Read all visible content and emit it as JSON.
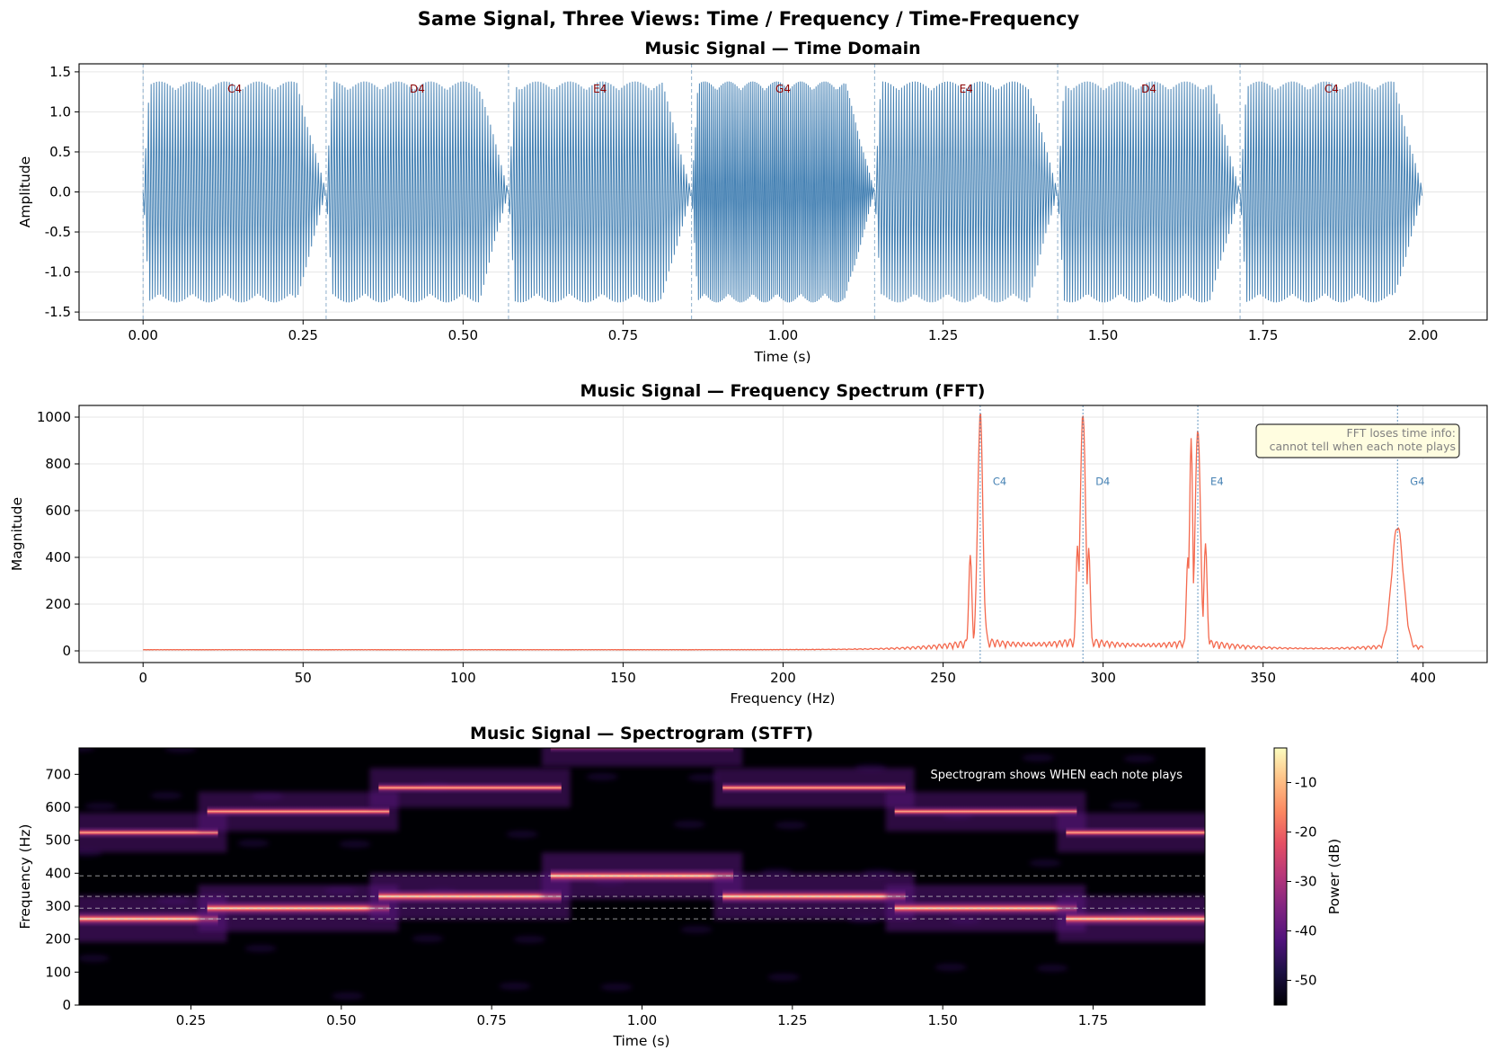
{
  "figure": {
    "suptitle": "Same Signal, Three Views: Time / Frequency / Time-Frequency"
  },
  "colors": {
    "time_signal": "#4682b4",
    "fft_line": "#f4694e",
    "note_label": "#8b0000",
    "peak_marker": "#4682b4",
    "annotation_bg": "#fffde0",
    "colormap": "magma"
  },
  "chart_data": [
    {
      "type": "line",
      "title": "Music Signal — Time Domain",
      "xlabel": "Time (s)",
      "ylabel": "Amplitude",
      "xlim": [
        -0.1,
        2.1
      ],
      "ylim": [
        -1.6,
        1.6
      ],
      "xticks": [
        "0.00",
        "0.25",
        "0.50",
        "0.75",
        "1.00",
        "1.25",
        "1.50",
        "1.75",
        "2.00"
      ],
      "yticks": [
        "-1.5",
        "-1.0",
        "-0.5",
        "0.0",
        "0.5",
        "1.0",
        "1.5"
      ],
      "grid": true,
      "notes": [
        {
          "label": "C4",
          "start": 0.0,
          "end": 0.286,
          "amplitude": 1.38
        },
        {
          "label": "D4",
          "start": 0.286,
          "end": 0.571,
          "amplitude": 1.38
        },
        {
          "label": "E4",
          "start": 0.571,
          "end": 0.857,
          "amplitude": 1.38
        },
        {
          "label": "G4",
          "start": 0.857,
          "end": 1.143,
          "amplitude": 1.38
        },
        {
          "label": "E4",
          "start": 1.143,
          "end": 1.429,
          "amplitude": 1.38
        },
        {
          "label": "D4",
          "start": 1.429,
          "end": 1.714,
          "amplitude": 1.38
        },
        {
          "label": "C4",
          "start": 1.714,
          "end": 2.0,
          "amplitude": 1.38
        }
      ],
      "boundaries": [
        0.0,
        0.286,
        0.571,
        0.857,
        1.143,
        1.429,
        1.714
      ]
    },
    {
      "type": "line",
      "title": "Music Signal — Frequency Spectrum (FFT)",
      "xlabel": "Frequency (Hz)",
      "ylabel": "Magnitude",
      "xlim": [
        -20,
        420
      ],
      "ylim": [
        -50,
        1050
      ],
      "xticks": [
        "0",
        "50",
        "100",
        "150",
        "200",
        "250",
        "300",
        "350",
        "400"
      ],
      "yticks": [
        "0",
        "200",
        "400",
        "600",
        "800",
        "1000"
      ],
      "grid": true,
      "peaks": [
        {
          "label": "C4",
          "freq": 261.6,
          "magnitude": 985
        },
        {
          "label": "D4",
          "freq": 293.7,
          "magnitude": 1000
        },
        {
          "label": "E4",
          "freq": 329.6,
          "magnitude": 935
        },
        {
          "label": "G4",
          "freq": 392.0,
          "magnitude": 515
        }
      ],
      "side_peaks": [
        {
          "freq": 258.5,
          "magnitude": 410
        },
        {
          "freq": 292.0,
          "magnitude": 450
        },
        {
          "freq": 295.5,
          "magnitude": 440
        },
        {
          "freq": 327.5,
          "magnitude": 910
        },
        {
          "freq": 326.5,
          "magnitude": 400
        },
        {
          "freq": 332.0,
          "magnitude": 460
        }
      ],
      "annotation": [
        "FFT loses time info:",
        "cannot tell when each note plays"
      ]
    },
    {
      "type": "heatmap",
      "title": "Music Signal — Spectrogram (STFT)",
      "xlabel": "Time (s)",
      "ylabel": "Frequency (Hz)",
      "xlim": [
        0.064,
        1.936
      ],
      "ylim": [
        0,
        780
      ],
      "xticks": [
        "0.25",
        "0.50",
        "0.75",
        "1.00",
        "1.25",
        "1.50",
        "1.75"
      ],
      "yticks": [
        "0",
        "100",
        "200",
        "300",
        "400",
        "500",
        "600",
        "700"
      ],
      "colorbar": {
        "label": "Power (dB)",
        "range": [
          -55,
          -3
        ],
        "ticks": [
          "-10",
          "-20",
          "-30",
          "-40",
          "-50"
        ]
      },
      "annotation": "Spectrogram shows WHEN each note plays",
      "reference_lines_hz": [
        261.6,
        293.7,
        329.6,
        392.0
      ],
      "segments": [
        {
          "start": 0.0,
          "end": 0.286,
          "fundamental": 261.6,
          "harmonic": 523.3
        },
        {
          "start": 0.286,
          "end": 0.571,
          "fundamental": 293.7,
          "harmonic": 587.3
        },
        {
          "start": 0.571,
          "end": 0.857,
          "fundamental": 329.6,
          "harmonic": 659.3
        },
        {
          "start": 0.857,
          "end": 1.143,
          "fundamental": 392.0,
          "harmonic": 784.0
        },
        {
          "start": 1.143,
          "end": 1.429,
          "fundamental": 329.6,
          "harmonic": 659.3
        },
        {
          "start": 1.429,
          "end": 1.714,
          "fundamental": 293.7,
          "harmonic": 587.3
        },
        {
          "start": 1.714,
          "end": 2.0,
          "fundamental": 261.6,
          "harmonic": 523.3
        }
      ]
    }
  ]
}
